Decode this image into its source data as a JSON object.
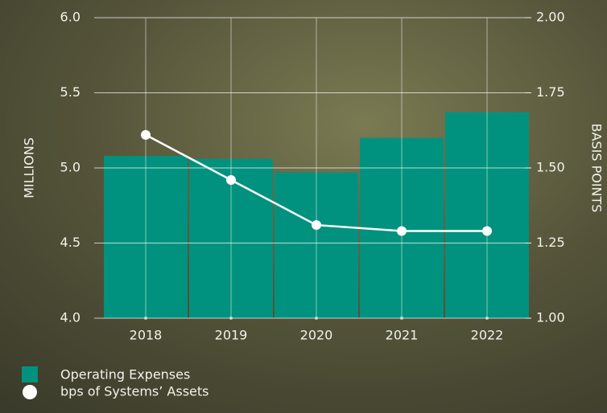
{
  "chart_data": {
    "type": "bar-line",
    "categories": [
      "2018",
      "2019",
      "2020",
      "2021",
      "2022"
    ],
    "ylabel": "MILLIONS",
    "y2label": "BASIS POINTS",
    "ylim": [
      4,
      6
    ],
    "yticks": [
      {
        "value": 4,
        "label": "4.0"
      },
      {
        "value": 4.5,
        "label": "4.5"
      },
      {
        "value": 5,
        "label": "5.0"
      },
      {
        "value": 5.5,
        "label": "5.5"
      },
      {
        "value": 6,
        "label": "6.0"
      }
    ],
    "y2lim": [
      1,
      2
    ],
    "y2ticks": [
      {
        "value": 1,
        "label": "1.00"
      },
      {
        "value": 1.25,
        "label": "1.25"
      },
      {
        "value": 1.5,
        "label": "1.50"
      },
      {
        "value": 1.75,
        "label": "1.75"
      },
      {
        "value": 2,
        "label": "2.00"
      }
    ],
    "grid": true,
    "series": [
      {
        "name": "Operating Expenses",
        "type": "bar",
        "color": "#00927e",
        "values": [
          5.08,
          5.06,
          4.97,
          5.2,
          5.37
        ]
      },
      {
        "name": "bps of Systems’ Assets",
        "type": "line",
        "axis": "y2",
        "color": "#ffffff",
        "values": [
          1.61,
          1.46,
          1.31,
          1.29,
          1.29
        ]
      }
    ]
  }
}
